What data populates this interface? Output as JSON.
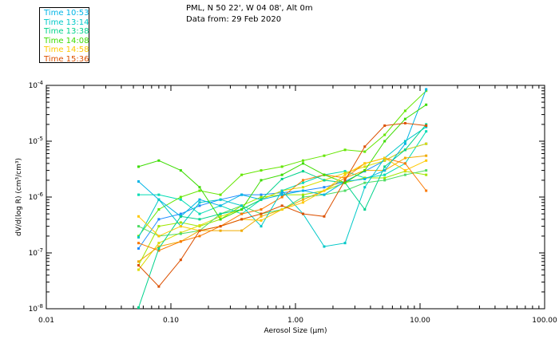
{
  "header": {
    "station": "PML, N 50 22', W 04 08', Alt 0m",
    "date_line": "Data from: 29 Feb 2020"
  },
  "chart_data": {
    "type": "line",
    "title": "PML, N 50 22', W 04 08', Alt 0m",
    "subtitle": "Data from: 29 Feb 2020",
    "xlabel": "Aerosol Size (μm)",
    "ylabel": "dV/d(log R) (cm³/cm³)",
    "x_scale": "log",
    "y_scale": "log",
    "xlim": [
      0.01,
      100
    ],
    "ylim": [
      1e-08,
      0.0001
    ],
    "x_ticks": [
      "0.01",
      "0.10",
      "1.00",
      "10.00",
      "100.00"
    ],
    "y_ticks": [
      {
        "base": "10",
        "exp": "-8"
      },
      {
        "base": "10",
        "exp": "-7"
      },
      {
        "base": "10",
        "exp": "-6"
      },
      {
        "base": "10",
        "exp": "-5"
      },
      {
        "base": "10",
        "exp": "-4"
      }
    ],
    "grid": false,
    "legend_position": "top-left",
    "x": [
      0.055,
      0.08,
      0.12,
      0.17,
      0.25,
      0.37,
      0.53,
      0.78,
      1.15,
      1.7,
      2.5,
      3.6,
      5.2,
      7.6,
      11.2
    ],
    "series": [
      {
        "name": "Time 10:53",
        "color": "#00b4e6",
        "values": [
          1.9e-06,
          9e-07,
          4.5e-07,
          9e-07,
          7e-07,
          1.1e-06,
          9e-07,
          1.1e-06,
          1.3e-06,
          1.1e-06,
          1.9e-06,
          2.1e-06,
          3e-06,
          9e-06,
          8.5e-05
        ]
      },
      {
        "name": "Time 13:14",
        "color": "#00c8c8",
        "values": [
          1.9e-07,
          9e-07,
          3e-07,
          8e-07,
          9e-07,
          7e-07,
          3e-07,
          1.3e-06,
          5e-07,
          1.3e-07,
          1.5e-07,
          1.5e-06,
          5e-06,
          1e-05,
          1.8e-05
        ]
      },
      {
        "name": "Time 13:38",
        "color": "#00d28c",
        "values": [
          1.05e-08,
          1.2e-07,
          4.5e-07,
          4e-07,
          5e-07,
          6e-07,
          9e-07,
          2.1e-06,
          2.9e-06,
          2e-06,
          1.8e-06,
          6e-07,
          3.5e-06,
          7e-06,
          2e-05
        ]
      },
      {
        "name": "Time 14:08",
        "color": "#3cdc00",
        "values": [
          3.5e-06,
          4.5e-06,
          3e-06,
          1.5e-06,
          4e-07,
          6e-07,
          2e-06,
          2.5e-06,
          4e-06,
          2.5e-06,
          1.8e-06,
          3e-06,
          1e-05,
          2.5e-05,
          4.5e-05
        ]
      },
      {
        "name": "Time 14:58",
        "color": "#ffc800",
        "values": [
          4.5e-07,
          2e-07,
          3e-07,
          2.5e-07,
          3e-07,
          4e-07,
          3.8e-07,
          6e-07,
          8e-07,
          1.3e-06,
          2.5e-06,
          4e-06,
          5e-06,
          3e-06,
          4.5e-06
        ]
      },
      {
        "name": "Time 15:36",
        "color": "#dc5000",
        "values": [
          6e-08,
          2.5e-08,
          7.5e-08,
          2.5e-07,
          3e-07,
          4e-07,
          5e-07,
          7e-07,
          5e-07,
          4.5e-07,
          2e-06,
          8e-06,
          1.9e-05,
          2.1e-05,
          1.9e-05
        ]
      }
    ]
  },
  "extra_traces": [
    {
      "color": "#1e8cff",
      "values": [
        1.2e-07,
        4e-07,
        5e-07,
        7e-07,
        9e-07,
        1.1e-06,
        1.1e-06,
        1.2e-06,
        1.3e-06,
        1.5e-06,
        1.9e-06,
        2.9e-06,
        4.5e-06,
        7e-06,
        9e-06
      ]
    },
    {
      "color": "#00dcb4",
      "values": [
        1.1e-06,
        1.1e-06,
        9e-07,
        5e-07,
        7e-07,
        5e-07,
        9e-07,
        1.3e-06,
        1.8e-06,
        2.5e-06,
        2.9e-06,
        2.2e-06,
        2.5e-06,
        4e-06,
        1.5e-05
      ]
    },
    {
      "color": "#64e600",
      "values": [
        2e-07,
        6e-07,
        1e-06,
        1.3e-06,
        1.1e-06,
        2.5e-06,
        3e-06,
        3.5e-06,
        4.5e-06,
        5.5e-06,
        7e-06,
        6.5e-06,
        1.3e-05,
        3.5e-05,
        8e-05
      ]
    },
    {
      "color": "#a0e600",
      "values": [
        6e-08,
        3e-07,
        3.5e-07,
        3e-07,
        4e-07,
        7e-07,
        1e-06,
        1.1e-06,
        1.1e-06,
        1.3e-06,
        1.8e-06,
        2.2e-06,
        2.2e-06,
        2.9e-06,
        2.5e-06
      ]
    },
    {
      "color": "#dcdc00",
      "values": [
        5e-08,
        1.5e-07,
        2.3e-07,
        3.1e-07,
        4.5e-07,
        6e-07,
        9e-07,
        1.3e-06,
        1.5e-06,
        2e-06,
        2.7e-06,
        3.5e-06,
        4.5e-06,
        7e-06,
        9e-06
      ]
    },
    {
      "color": "#f0aa00",
      "values": [
        7e-08,
        1.3e-07,
        1.6e-07,
        2.5e-07,
        2.5e-07,
        2.5e-07,
        4.5e-07,
        6e-07,
        9e-07,
        1.3e-06,
        2.2e-06,
        3e-06,
        3e-06,
        5e-06,
        5.5e-06
      ]
    },
    {
      "color": "#50dc64",
      "values": [
        3e-07,
        2e-07,
        2.2e-07,
        2.5e-07,
        5e-07,
        7e-07,
        5e-07,
        6e-07,
        1e-06,
        1.1e-06,
        1.3e-06,
        1.8e-06,
        2e-06,
        2.5e-06,
        3e-06
      ]
    },
    {
      "color": "#fa7800",
      "values": [
        1.5e-07,
        1.1e-07,
        1.6e-07,
        2e-07,
        3e-07,
        5e-07,
        6e-07,
        1e-06,
        2e-06,
        2.5e-06,
        2.2e-06,
        4e-06,
        5e-06,
        4e-06,
        1.3e-06
      ]
    }
  ]
}
